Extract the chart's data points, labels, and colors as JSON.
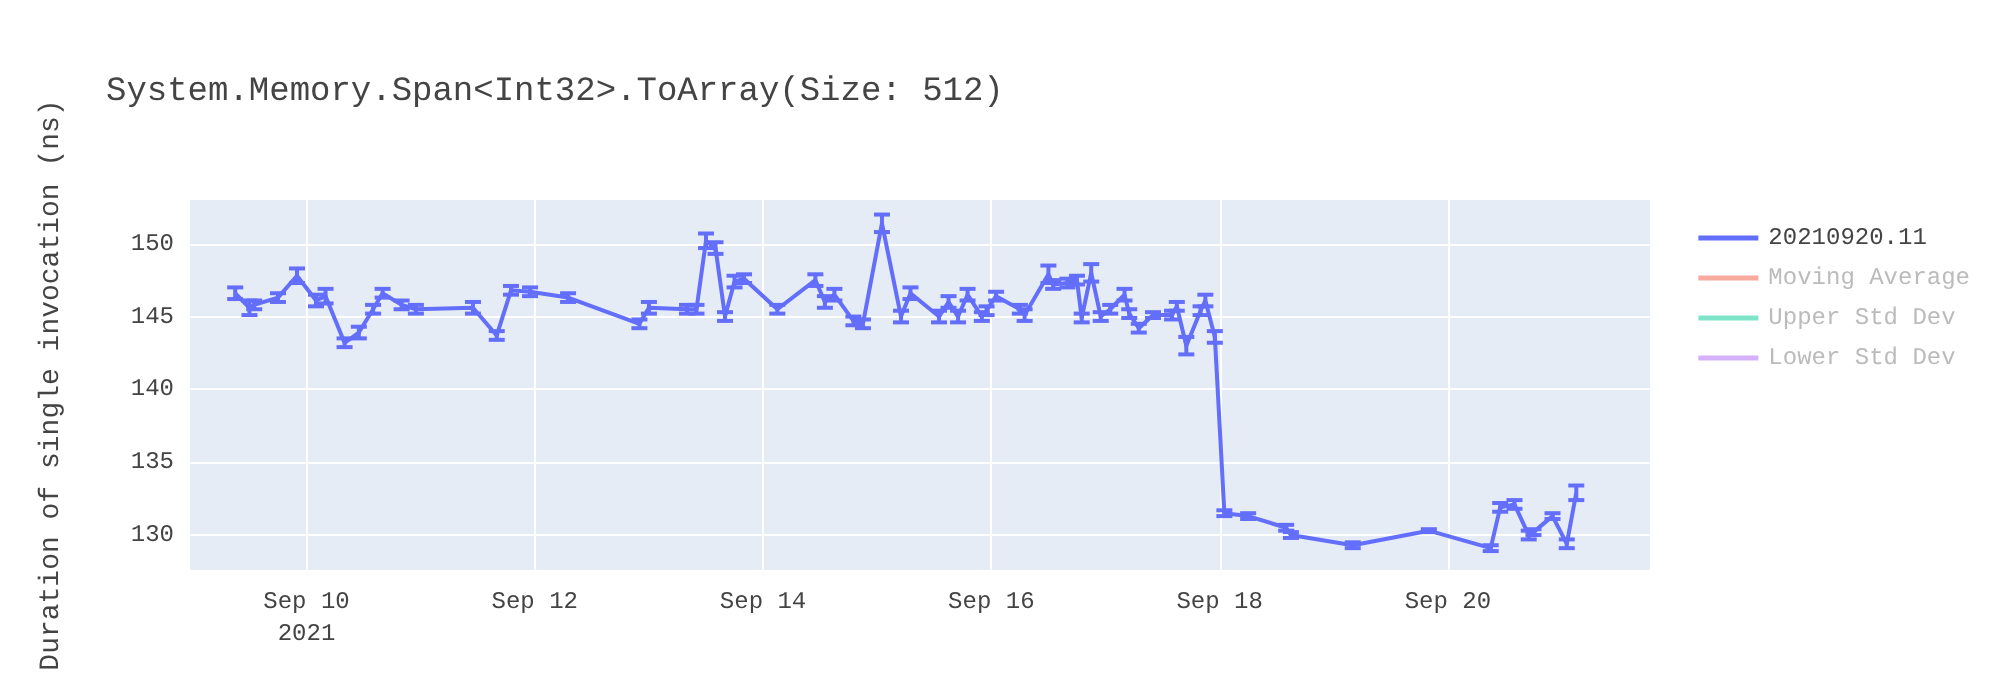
{
  "chart_data": {
    "type": "line",
    "title": "System.Memory.Span<Int32>.ToArray(Size: 512)",
    "ylabel": "Duration of single invocation (ns)",
    "x": [
      "2021-09-09T09:00",
      "2021-09-09T12:00",
      "2021-09-09T13:00",
      "2021-09-09T18:00",
      "2021-09-09T22:00",
      "2021-09-10T02:00",
      "2021-09-10T04:00",
      "2021-09-10T08:00",
      "2021-09-10T11:00",
      "2021-09-10T14:00",
      "2021-09-10T16:00",
      "2021-09-10T20:00",
      "2021-09-10T23:00",
      "2021-09-11T11:00",
      "2021-09-11T16:00",
      "2021-09-11T19:00",
      "2021-09-11T23:00",
      "2021-09-12T07:00",
      "2021-09-12T22:00",
      "2021-09-13T00:00",
      "2021-09-13T08:00",
      "2021-09-13T10:00",
      "2021-09-13T12:00",
      "2021-09-13T14:00",
      "2021-09-13T16:00",
      "2021-09-13T18:00",
      "2021-09-13T20:00",
      "2021-09-14T03:00",
      "2021-09-14T11:00",
      "2021-09-14T13:00",
      "2021-09-14T15:00",
      "2021-09-14T19:00",
      "2021-09-14T21:00",
      "2021-09-15T01:00",
      "2021-09-15T05:00",
      "2021-09-15T07:00",
      "2021-09-15T13:00",
      "2021-09-15T15:00",
      "2021-09-15T17:00",
      "2021-09-15T19:00",
      "2021-09-15T22:00",
      "2021-09-15T23:00",
      "2021-09-16T01:00",
      "2021-09-16T06:00",
      "2021-09-16T07:00",
      "2021-09-16T12:00",
      "2021-09-16T13:00",
      "2021-09-16T16:00",
      "2021-09-16T18:00",
      "2021-09-16T19:00",
      "2021-09-16T21:00",
      "2021-09-16T23:00",
      "2021-09-17T01:00",
      "2021-09-17T04:00",
      "2021-09-17T05:00",
      "2021-09-17T07:00",
      "2021-09-17T10:00",
      "2021-09-17T14:00",
      "2021-09-17T15:00",
      "2021-09-17T17:00",
      "2021-09-17T20:00",
      "2021-09-17T21:00",
      "2021-09-17T23:00",
      "2021-09-18T01:00",
      "2021-09-18T06:00",
      "2021-09-18T14:00",
      "2021-09-18T15:00",
      "2021-09-19T04:00",
      "2021-09-19T20:00",
      "2021-09-20T09:00",
      "2021-09-20T11:00",
      "2021-09-20T14:00",
      "2021-09-20T17:00",
      "2021-09-20T18:00",
      "2021-09-20T22:00",
      "2021-09-21T01:00",
      "2021-09-21T03:00"
    ],
    "series": [
      {
        "name": "20210920.11",
        "color": "#636efa",
        "values": [
          146.6,
          145.6,
          145.8,
          146.3,
          147.8,
          146.1,
          146.4,
          143.2,
          143.9,
          145.5,
          146.6,
          145.8,
          145.5,
          145.6,
          143.7,
          146.8,
          146.7,
          146.3,
          144.5,
          145.6,
          145.5,
          145.5,
          150.2,
          149.7,
          145.0,
          147.4,
          147.6,
          145.5,
          147.5,
          146.0,
          146.5,
          144.7,
          144.5,
          151.4,
          145.0,
          146.6,
          145.0,
          146.0,
          145.0,
          146.5,
          145.0,
          145.4,
          146.4,
          145.5,
          145.1,
          147.9,
          147.2,
          147.3,
          147.5,
          144.9,
          148.0,
          145.0,
          145.5,
          146.5,
          145.2,
          144.2,
          145.1,
          145.1,
          145.7,
          143.0,
          145.4,
          146.1,
          143.6,
          131.5,
          131.3,
          130.5,
          130.0,
          129.3,
          130.3,
          129.1,
          131.9,
          132.1,
          130.0,
          130.2,
          131.3,
          129.4,
          132.9
        ],
        "errors": [
          0.4,
          0.5,
          0.3,
          0.3,
          0.5,
          0.4,
          0.5,
          0.3,
          0.4,
          0.3,
          0.3,
          0.3,
          0.3,
          0.4,
          0.3,
          0.3,
          0.3,
          0.3,
          0.3,
          0.4,
          0.3,
          0.3,
          0.5,
          0.4,
          0.3,
          0.4,
          0.3,
          0.3,
          0.4,
          0.4,
          0.4,
          0.3,
          0.3,
          0.6,
          0.4,
          0.4,
          0.4,
          0.4,
          0.4,
          0.4,
          0.3,
          0.3,
          0.3,
          0.3,
          0.4,
          0.6,
          0.3,
          0.3,
          0.3,
          0.3,
          0.6,
          0.3,
          0.3,
          0.4,
          0.3,
          0.3,
          0.2,
          0.3,
          0.3,
          0.6,
          0.3,
          0.4,
          0.4,
          0.2,
          0.2,
          0.2,
          0.2,
          0.2,
          0.1,
          0.2,
          0.3,
          0.3,
          0.3,
          0.2,
          0.2,
          0.3,
          0.5
        ]
      },
      {
        "name": "Moving Average",
        "color": "#ef553b",
        "values": [
          null,
          null,
          null,
          null,
          null,
          null,
          null,
          null,
          null,
          null,
          null,
          null,
          null,
          null,
          null,
          null,
          null,
          null,
          null,
          null,
          null,
          null,
          null,
          null,
          null,
          null,
          null,
          null,
          null,
          null,
          null,
          null,
          null,
          null,
          null,
          null,
          null,
          null,
          null,
          null,
          null,
          null,
          null,
          null,
          null,
          null,
          null,
          null,
          null,
          null,
          null,
          null,
          null,
          null,
          null,
          null,
          null,
          null,
          null,
          null,
          null,
          null,
          null,
          null,
          null,
          null,
          null,
          null,
          null,
          null,
          null,
          null,
          null,
          null,
          null,
          null,
          null
        ]
      },
      {
        "name": "Upper Std Dev",
        "color": "#00cc96",
        "values": [
          null,
          null,
          null,
          null,
          null,
          null,
          null,
          null,
          null,
          null,
          null,
          null,
          null,
          null,
          null,
          null,
          null,
          null,
          null,
          null,
          null,
          null,
          null,
          null,
          null,
          null,
          null,
          null,
          null,
          null,
          null,
          null,
          null,
          null,
          null,
          null,
          null,
          null,
          null,
          null,
          null,
          null,
          null,
          null,
          null,
          null,
          null,
          null,
          null,
          null,
          null,
          null,
          null,
          null,
          null,
          null,
          null,
          null,
          null,
          null,
          null,
          null,
          null,
          null,
          null,
          null,
          null,
          null,
          null,
          null,
          null,
          null,
          null,
          null,
          null,
          null,
          null
        ]
      },
      {
        "name": "Lower Std Dev",
        "color": "#ab63fa",
        "values": [
          null,
          null,
          null,
          null,
          null,
          null,
          null,
          null,
          null,
          null,
          null,
          null,
          null,
          null,
          null,
          null,
          null,
          null,
          null,
          null,
          null,
          null,
          null,
          null,
          null,
          null,
          null,
          null,
          null,
          null,
          null,
          null,
          null,
          null,
          null,
          null,
          null,
          null,
          null,
          null,
          null,
          null,
          null,
          null,
          null,
          null,
          null,
          null,
          null,
          null,
          null,
          null,
          null,
          null,
          null,
          null,
          null,
          null,
          null,
          null,
          null,
          null,
          null,
          null,
          null,
          null,
          null,
          null,
          null,
          null,
          null,
          null,
          null,
          null,
          null,
          null,
          null
        ]
      }
    ],
    "xlim": [
      "2021-09-08T23:30",
      "2021-09-21T18:30"
    ],
    "xticks": [
      {
        "value": "2021-09-10",
        "label": "Sep 10\n2021"
      },
      {
        "value": "2021-09-12",
        "label": "Sep 12"
      },
      {
        "value": "2021-09-14",
        "label": "Sep 14"
      },
      {
        "value": "2021-09-16",
        "label": "Sep 16"
      },
      {
        "value": "2021-09-18",
        "label": "Sep 18"
      },
      {
        "value": "2021-09-20",
        "label": "Sep 20"
      }
    ],
    "ylim": [
      127.6,
      153
    ],
    "yticks": [
      130,
      135,
      140,
      145,
      150
    ],
    "grid": true,
    "legend": "top right",
    "marker": "none",
    "line_style": "solid"
  }
}
